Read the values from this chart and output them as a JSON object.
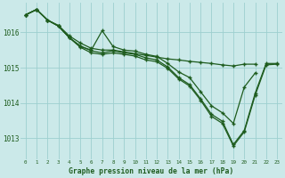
{
  "background_color": "#cbe9e9",
  "grid_color": "#9dcfcf",
  "line_color": "#1e5c1e",
  "ylabel_color": "#1e5c1e",
  "xlabel": "Graphe pression niveau de la mer (hPa)",
  "ylim": [
    1012.4,
    1016.85
  ],
  "yticks": [
    1013,
    1014,
    1015,
    1016
  ],
  "xticks": [
    0,
    1,
    2,
    3,
    4,
    5,
    6,
    7,
    8,
    9,
    10,
    11,
    12,
    13,
    14,
    15,
    16,
    17,
    18,
    19,
    20,
    21,
    22,
    23
  ],
  "series": [
    {
      "x": [
        0,
        1,
        2,
        3,
        4,
        5,
        6,
        7,
        8,
        9,
        10,
        11,
        12,
        13,
        14,
        15,
        16,
        17,
        18,
        19,
        20,
        21
      ],
      "y": [
        1016.5,
        1016.65,
        1016.35,
        1016.2,
        1015.9,
        1015.7,
        1015.55,
        1015.5,
        1015.5,
        1015.45,
        1015.4,
        1015.35,
        1015.3,
        1015.25,
        1015.22,
        1015.18,
        1015.15,
        1015.12,
        1015.08,
        1015.05,
        1015.1,
        1015.1
      ]
    },
    {
      "x": [
        0,
        1,
        2,
        3,
        4,
        5,
        6,
        7,
        8,
        9,
        10,
        11,
        12,
        13,
        14,
        15,
        16,
        17,
        18,
        19,
        20,
        21
      ],
      "y": [
        1016.5,
        1016.65,
        1016.35,
        1016.18,
        1015.85,
        1015.6,
        1015.5,
        1016.05,
        1015.6,
        1015.5,
        1015.47,
        1015.38,
        1015.32,
        1015.12,
        1014.88,
        1014.72,
        1014.32,
        1013.92,
        1013.72,
        1013.42,
        1014.45,
        1014.85
      ]
    },
    {
      "x": [
        0,
        1,
        2,
        3,
        4,
        5,
        6,
        7,
        8,
        9,
        10,
        11,
        12,
        13,
        14,
        15,
        16,
        17,
        18,
        19,
        20,
        21,
        22,
        23
      ],
      "y": [
        1016.5,
        1016.65,
        1016.35,
        1016.18,
        1015.85,
        1015.62,
        1015.48,
        1015.42,
        1015.48,
        1015.42,
        1015.38,
        1015.28,
        1015.22,
        1015.02,
        1014.72,
        1014.52,
        1014.12,
        1013.68,
        1013.48,
        1012.82,
        1013.22,
        1014.28,
        1015.12,
        1015.12
      ]
    },
    {
      "x": [
        0,
        1,
        2,
        3,
        4,
        5,
        6,
        7,
        8,
        9,
        10,
        11,
        12,
        13,
        14,
        15,
        16,
        17,
        18,
        19,
        20,
        21,
        22,
        23
      ],
      "y": [
        1016.5,
        1016.65,
        1016.35,
        1016.18,
        1015.85,
        1015.58,
        1015.42,
        1015.38,
        1015.42,
        1015.38,
        1015.33,
        1015.22,
        1015.17,
        1014.98,
        1014.68,
        1014.48,
        1014.08,
        1013.62,
        1013.42,
        1012.78,
        1013.18,
        1014.22,
        1015.08,
        1015.1
      ]
    }
  ]
}
